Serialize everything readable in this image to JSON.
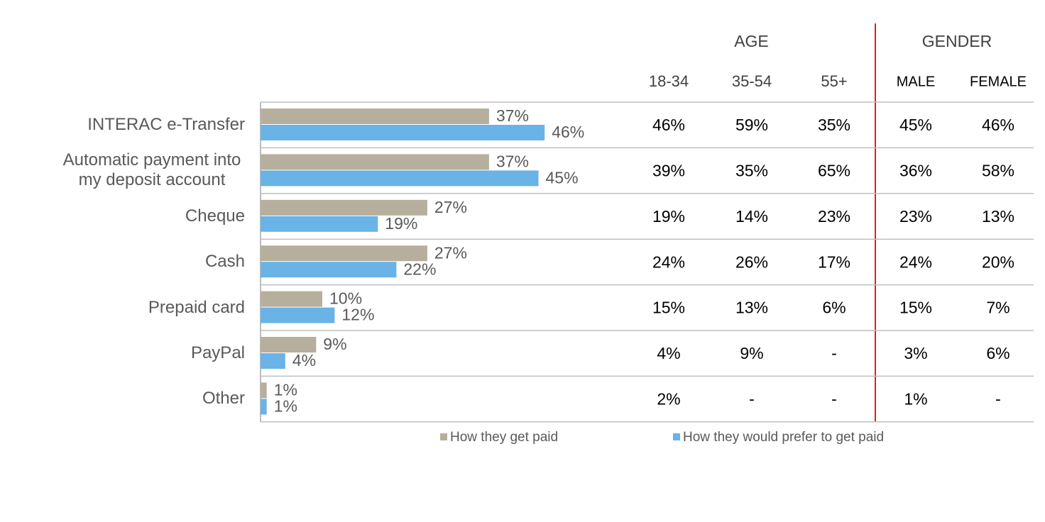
{
  "chart_data": {
    "type": "barh",
    "categories": [
      "INTERAC e-Transfer",
      "Automatic payment into my deposit account",
      "Cheque",
      "Cash",
      "Prepaid card",
      "PayPal",
      "Other"
    ],
    "series": [
      {
        "name": "How they get paid",
        "color": "#b7af9d",
        "values": [
          37,
          37,
          27,
          27,
          10,
          9,
          1
        ],
        "value_labels": [
          "37%",
          "37%",
          "27%",
          "27%",
          "10%",
          "9%",
          "1%"
        ]
      },
      {
        "name": "How they would prefer to get paid",
        "color": "#69b3e7",
        "values": [
          46,
          45,
          19,
          22,
          12,
          4,
          1
        ],
        "value_labels": [
          "46%",
          "45%",
          "19%",
          "22%",
          "12%",
          "4%",
          "1%"
        ]
      }
    ],
    "xlim": [
      0,
      60
    ]
  },
  "table": {
    "group_headers": [
      "AGE",
      "GENDER"
    ],
    "columns": [
      "18-34",
      "35-54",
      "55+",
      "MALE",
      "FEMALE"
    ],
    "rows": [
      [
        "46%",
        "59%",
        "35%",
        "45%",
        "46%"
      ],
      [
        "39%",
        "35%",
        "65%",
        "36%",
        "58%"
      ],
      [
        "19%",
        "14%",
        "23%",
        "23%",
        "13%"
      ],
      [
        "24%",
        "26%",
        "17%",
        "24%",
        "20%"
      ],
      [
        "15%",
        "13%",
        "6%",
        "15%",
        "7%"
      ],
      [
        "4%",
        "9%",
        "-",
        "3%",
        "6%"
      ],
      [
        "2%",
        "-",
        "-",
        "1%",
        "-"
      ]
    ]
  }
}
